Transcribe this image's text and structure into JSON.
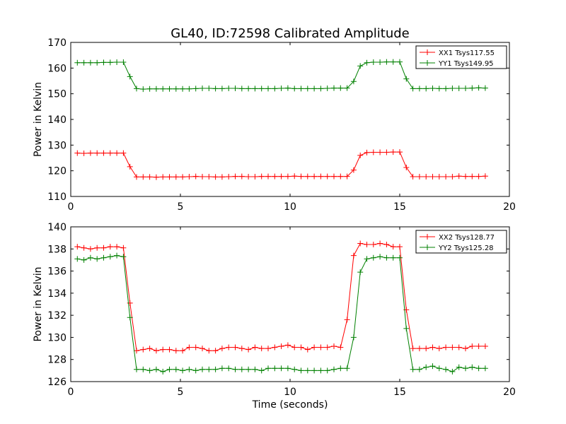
{
  "figure": {
    "title": "GL40, ID:72598 Calibrated Amplitude"
  },
  "chart_data": [
    {
      "type": "line",
      "title": "GL40, ID:72598 Calibrated Amplitude",
      "xlabel": "",
      "ylabel": "Power in Kelvin",
      "xlim": [
        0,
        20
      ],
      "ylim": [
        110,
        170
      ],
      "xticks": [
        "0",
        "5",
        "10",
        "15",
        "20"
      ],
      "yticks": [
        "110",
        "120",
        "130",
        "140",
        "150",
        "160",
        "170"
      ],
      "grid": false,
      "legend_position": "top-right",
      "x": [
        0.3,
        0.6,
        0.9,
        1.2,
        1.5,
        1.8,
        2.1,
        2.4,
        2.7,
        3.0,
        3.3,
        3.6,
        3.9,
        4.2,
        4.5,
        4.8,
        5.1,
        5.4,
        5.7,
        6.0,
        6.3,
        6.6,
        6.9,
        7.2,
        7.5,
        7.8,
        8.1,
        8.4,
        8.7,
        9.0,
        9.3,
        9.6,
        9.9,
        10.2,
        10.5,
        10.8,
        11.1,
        11.4,
        11.7,
        12.0,
        12.3,
        12.6,
        12.9,
        13.2,
        13.5,
        13.8,
        14.1,
        14.4,
        14.7,
        15.0,
        15.3,
        15.6,
        15.9,
        16.2,
        16.5,
        16.8,
        17.1,
        17.4,
        17.7,
        18.0,
        18.3,
        18.6,
        18.9
      ],
      "series": [
        {
          "name": "XX1 Tsys117.55",
          "color": "#ff0000",
          "values": [
            126.9,
            126.8,
            126.9,
            126.9,
            126.9,
            126.9,
            126.9,
            126.9,
            121.6,
            117.6,
            117.6,
            117.6,
            117.5,
            117.6,
            117.6,
            117.6,
            117.6,
            117.7,
            117.8,
            117.7,
            117.7,
            117.6,
            117.6,
            117.7,
            117.8,
            117.8,
            117.7,
            117.7,
            117.8,
            117.8,
            117.8,
            117.8,
            117.8,
            117.9,
            117.8,
            117.8,
            117.8,
            117.8,
            117.8,
            117.8,
            117.8,
            117.8,
            120.3,
            126.0,
            127.1,
            127.2,
            127.2,
            127.2,
            127.3,
            127.3,
            121.3,
            117.7,
            117.7,
            117.7,
            117.7,
            117.7,
            117.7,
            117.7,
            117.9,
            117.8,
            117.8,
            117.8,
            117.9
          ]
        },
        {
          "name": "YY1 Tsys149.95",
          "color": "#008000",
          "values": [
            162.1,
            162.1,
            162.1,
            162.1,
            162.2,
            162.2,
            162.3,
            162.3,
            156.7,
            152.0,
            151.8,
            151.9,
            151.9,
            151.9,
            151.9,
            151.9,
            151.9,
            151.9,
            152.0,
            152.1,
            152.1,
            152.0,
            152.0,
            152.1,
            152.1,
            152.0,
            152.0,
            152.0,
            152.0,
            152.0,
            152.0,
            152.1,
            152.2,
            152.0,
            152.0,
            152.0,
            152.0,
            152.0,
            152.1,
            152.2,
            152.2,
            152.2,
            154.8,
            160.8,
            162.1,
            162.3,
            162.3,
            162.4,
            162.4,
            162.4,
            155.8,
            152.0,
            152.0,
            152.0,
            152.1,
            152.0,
            152.0,
            152.1,
            152.1,
            152.1,
            152.2,
            152.3,
            152.2
          ]
        }
      ]
    },
    {
      "type": "line",
      "title": "",
      "xlabel": "Time (seconds)",
      "ylabel": "Power in Kelvin",
      "xlim": [
        0,
        20
      ],
      "ylim": [
        126,
        140
      ],
      "xticks": [
        "0",
        "5",
        "10",
        "15",
        "20"
      ],
      "yticks": [
        "126",
        "128",
        "130",
        "132",
        "134",
        "136",
        "138",
        "140"
      ],
      "grid": false,
      "legend_position": "top-right",
      "x": [
        0.3,
        0.6,
        0.9,
        1.2,
        1.5,
        1.8,
        2.1,
        2.4,
        2.7,
        3.0,
        3.3,
        3.6,
        3.9,
        4.2,
        4.5,
        4.8,
        5.1,
        5.4,
        5.7,
        6.0,
        6.3,
        6.6,
        6.9,
        7.2,
        7.5,
        7.8,
        8.1,
        8.4,
        8.7,
        9.0,
        9.3,
        9.6,
        9.9,
        10.2,
        10.5,
        10.8,
        11.1,
        11.4,
        11.7,
        12.0,
        12.3,
        12.6,
        12.9,
        13.2,
        13.5,
        13.8,
        14.1,
        14.4,
        14.7,
        15.0,
        15.3,
        15.6,
        15.9,
        16.2,
        16.5,
        16.8,
        17.1,
        17.4,
        17.7,
        18.0,
        18.3,
        18.6,
        18.9
      ],
      "series": [
        {
          "name": "XX2 Tsys128.77",
          "color": "#ff0000",
          "values": [
            138.2,
            138.1,
            138.0,
            138.1,
            138.1,
            138.2,
            138.2,
            138.1,
            133.1,
            128.8,
            128.9,
            129.0,
            128.8,
            128.9,
            128.9,
            128.8,
            128.8,
            129.1,
            129.1,
            129.0,
            128.8,
            128.8,
            129.0,
            129.1,
            129.1,
            129.0,
            128.9,
            129.1,
            129.0,
            129.0,
            129.1,
            129.2,
            129.3,
            129.1,
            129.1,
            128.9,
            129.1,
            129.1,
            129.1,
            129.2,
            129.1,
            131.6,
            137.4,
            138.5,
            138.4,
            138.4,
            138.5,
            138.4,
            138.2,
            138.2,
            132.5,
            129.0,
            129.0,
            129.0,
            129.1,
            129.0,
            129.1,
            129.1,
            129.1,
            129.0,
            129.2,
            129.2,
            129.2
          ],
          "values_note_x": "shifted"
        },
        {
          "name": "YY2 Tsys125.28",
          "color": "#008000",
          "values": [
            137.1,
            137.0,
            137.2,
            137.1,
            137.2,
            137.3,
            137.4,
            137.3,
            131.8,
            127.1,
            127.1,
            127.0,
            127.1,
            126.9,
            127.1,
            127.1,
            127.0,
            127.1,
            127.0,
            127.1,
            127.1,
            127.1,
            127.2,
            127.2,
            127.1,
            127.1,
            127.1,
            127.1,
            127.0,
            127.2,
            127.2,
            127.2,
            127.2,
            127.1,
            127.0,
            127.0,
            127.0,
            127.0,
            127.0,
            127.1,
            127.2,
            127.2,
            130.0,
            135.9,
            137.1,
            137.2,
            137.3,
            137.2,
            137.2,
            137.2,
            130.8,
            127.1,
            127.1,
            127.3,
            127.4,
            127.2,
            127.1,
            126.9,
            127.3,
            127.2,
            127.3,
            127.2,
            127.2
          ]
        }
      ]
    }
  ]
}
